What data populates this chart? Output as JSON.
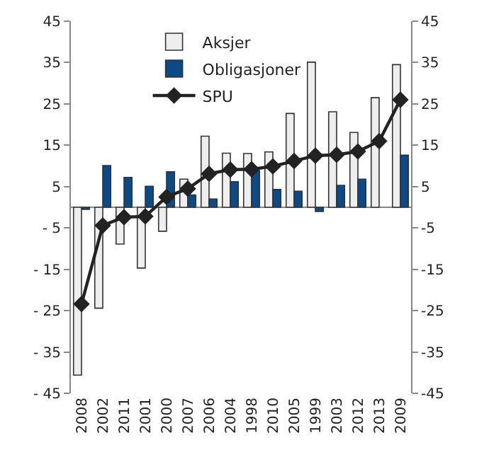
{
  "chart_data": {
    "type": "bar",
    "categories": [
      "2008",
      "2002",
      "2011",
      "2001",
      "2000",
      "2007",
      "2006",
      "2004",
      "1998",
      "2010",
      "2005",
      "1999",
      "2003",
      "2012",
      "2013",
      "2009"
    ],
    "series": [
      {
        "name": "Aksjer",
        "color": "#eeeeee",
        "values": [
          -40.6,
          -24.4,
          -8.9,
          -14.7,
          -5.8,
          6.8,
          17.2,
          13.1,
          13.0,
          13.4,
          22.7,
          35.1,
          23.1,
          18.1,
          26.5,
          34.5
        ]
      },
      {
        "name": "Obligasjoner",
        "color": "#0b4a84",
        "values": [
          -0.5,
          10.1,
          7.2,
          5.1,
          8.6,
          3.0,
          2.0,
          6.2,
          8.9,
          4.3,
          3.9,
          -1.0,
          5.3,
          6.8,
          null,
          12.6
        ]
      },
      {
        "name": "SPU",
        "type": "line",
        "color": "#222222",
        "marker": "diamond",
        "values": [
          -23.4,
          -4.4,
          -2.4,
          -2.2,
          2.5,
          4.5,
          8.1,
          9.1,
          9.2,
          9.9,
          11.2,
          12.5,
          12.7,
          13.5,
          16.0,
          26.0
        ]
      }
    ],
    "ylim": [
      -45,
      45
    ],
    "yticks": [
      {
        "value": -45,
        "label": "- 45"
      },
      {
        "value": -35,
        "label": "- 35"
      },
      {
        "value": -25,
        "label": "- 25"
      },
      {
        "value": -15,
        "label": "- 15"
      },
      {
        "value": -5,
        "label": "- 5"
      },
      5,
      15,
      25,
      35,
      45
    ],
    "y2lim": [
      -45,
      45
    ],
    "y2ticks": [
      -45,
      -35,
      -25,
      -15,
      -5,
      5,
      15,
      25,
      35,
      45
    ],
    "legend": "top left"
  }
}
